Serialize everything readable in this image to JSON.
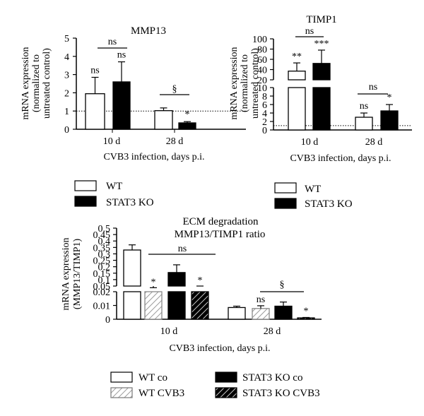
{
  "chart_data": [
    {
      "type": "bar",
      "title": "MMP13",
      "ylabel": "mRNA expression\n(normalized to\nuntreated control)",
      "xlabel": "CVB3 infection, days p.i.",
      "categories": [
        "10 d",
        "28 d"
      ],
      "ylim": [
        0,
        5
      ],
      "yticks": [
        "0",
        "1",
        "2",
        "3",
        "4",
        "5"
      ],
      "reference_line": 1,
      "series": [
        {
          "name": "WT",
          "values": [
            1.95,
            1.02
          ],
          "errors": [
            0.9,
            0.15
          ]
        },
        {
          "name": "STAT3 KO",
          "values": [
            2.6,
            0.35
          ],
          "errors": [
            1.1,
            0.07
          ]
        }
      ],
      "annotations": {
        "bar_labels": [
          "ns",
          "ns",
          "",
          "*"
        ],
        "group_labels": [
          "ns",
          "§"
        ]
      }
    },
    {
      "type": "bar",
      "title": "TIMP1",
      "ylabel": "mRNA expression\n(normalized to\nuntreated control)",
      "xlabel": "CVB3 infection, days p.i.",
      "categories": [
        "10 d",
        "28 d"
      ],
      "ylim_lower": [
        0,
        10
      ],
      "ylim_upper": [
        20,
        100
      ],
      "yticks_lower": [
        "0",
        "2",
        "4",
        "6",
        "8",
        "10"
      ],
      "yticks_upper": [
        "20",
        "40",
        "60",
        "80",
        "100"
      ],
      "reference_line": 1,
      "series": [
        {
          "name": "WT",
          "values": [
            37,
            3
          ],
          "errors": [
            16,
            1
          ]
        },
        {
          "name": "STAT3 KO",
          "values": [
            52,
            4.5
          ],
          "errors": [
            26,
            1.5
          ]
        }
      ],
      "annotations": {
        "bar_labels": [
          "**",
          "***",
          "ns",
          "*"
        ],
        "group_labels": [
          "ns",
          "ns"
        ]
      }
    },
    {
      "type": "bar",
      "title": "ECM degradation",
      "subtitle": "MMP13/TIMP1 ratio",
      "ylabel": "mRNA expression\n(MMP13/TIMP1)",
      "xlabel": "CVB3 infection, days p.i.",
      "categories": [
        "10 d",
        "28 d"
      ],
      "ylim_lower": [
        0,
        0.02
      ],
      "ylim_upper": [
        0.05,
        0.5
      ],
      "yticks_lower": [
        "0",
        "0.01",
        "0.02"
      ],
      "yticks_upper": [
        "0.05",
        "0.1",
        "0.15",
        "0.2",
        "0.25",
        "0.3",
        "0.35",
        "0.4",
        "0.45",
        "0.5"
      ],
      "series": [
        {
          "name": "WT co",
          "values": [
            0.33,
            0.0085
          ],
          "errors": [
            0.04,
            0.001
          ]
        },
        {
          "name": "WT CVB3",
          "values": [
            0.034,
            0.0078
          ],
          "errors": [
            0.003,
            0.002
          ]
        },
        {
          "name": "STAT3 KO co",
          "values": [
            0.155,
            0.0095
          ],
          "errors": [
            0.06,
            0.003
          ]
        },
        {
          "name": "STAT3 KO CVB3",
          "values": [
            0.04,
            0.001
          ],
          "errors": [
            0.01,
            0.0003
          ]
        }
      ],
      "annotations": {
        "bar_labels": [
          "",
          "*",
          "",
          "*",
          "",
          "ns",
          "",
          "*"
        ],
        "group_labels": [
          "ns",
          "§"
        ]
      }
    }
  ],
  "legend1": [
    "WT",
    "STAT3 KO"
  ],
  "legend2": [
    "WT",
    "STAT3 KO"
  ],
  "legend3": [
    "WT co",
    "WT CVB3",
    "STAT3 KO co",
    "STAT3 KO CVB3"
  ]
}
